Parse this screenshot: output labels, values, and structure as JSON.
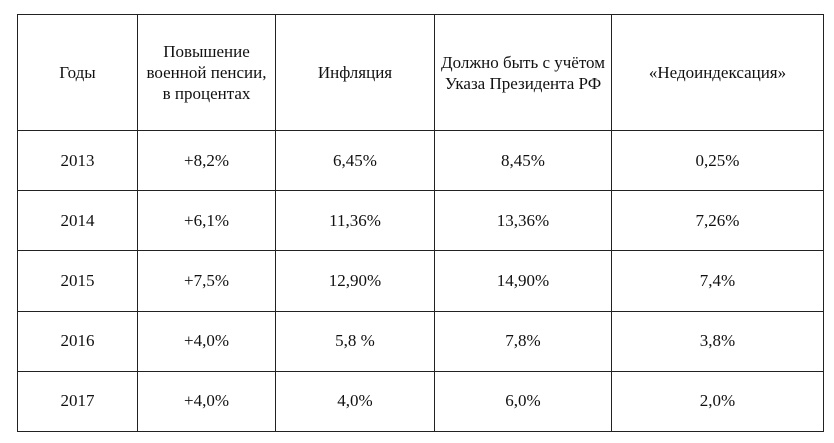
{
  "table": {
    "headers": [
      "Годы",
      "Повышение военной пенсии, в процентах",
      "Инфляция",
      "Должно быть с учётом Указа Президента РФ",
      "«Недоиндексация»"
    ],
    "rows": [
      [
        "2013",
        "+8,2%",
        "6,45%",
        "8,45%",
        "0,25%"
      ],
      [
        "2014",
        "+6,1%",
        "11,36%",
        "13,36%",
        "7,26%"
      ],
      [
        "2015",
        "+7,5%",
        "12,90%",
        "14,90%",
        "7,4%"
      ],
      [
        "2016",
        "+4,0%",
        "5,8 %",
        "7,8%",
        "3,8%"
      ],
      [
        "2017",
        "+4,0%",
        "4,0%",
        "6,0%",
        "2,0%"
      ]
    ]
  }
}
